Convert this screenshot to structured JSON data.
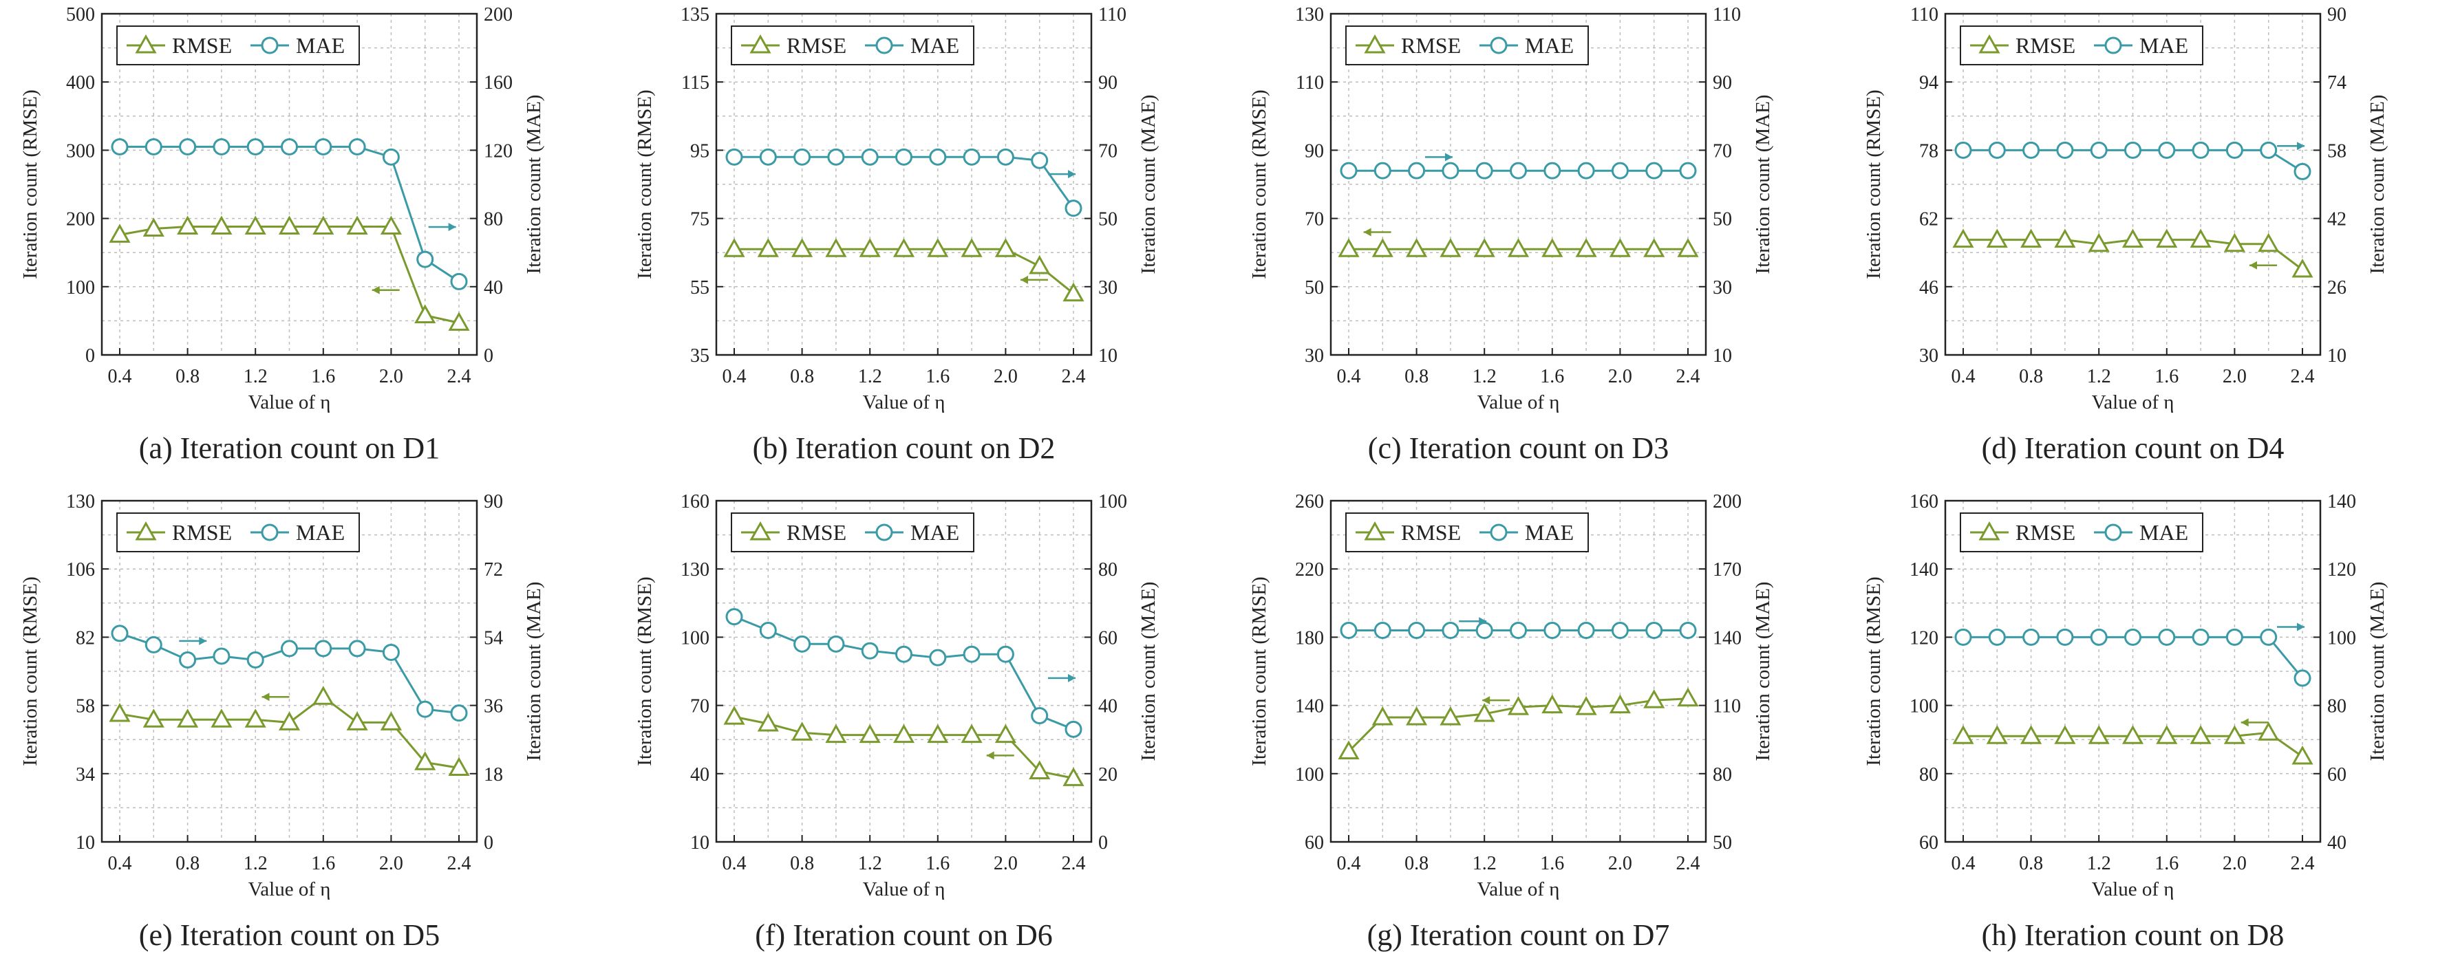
{
  "colors": {
    "rmse": "#7a9a2e",
    "mae": "#3a9aa6",
    "grid": "#bdbdbd",
    "frame": "#222222"
  },
  "chart_data": [
    {
      "type": "line",
      "caption": "(a) Iteration count on D1",
      "xlabel": "Value of η",
      "ylabel_left": "Iteration count (RMSE)",
      "ylabel_right": "Iteration count (MAE)",
      "x": [
        0.4,
        0.6,
        0.8,
        1.0,
        1.2,
        1.4,
        1.6,
        1.8,
        2.0,
        2.2,
        2.4
      ],
      "x_ticks": [
        "0.4",
        "0.8",
        "1.2",
        "1.6",
        "2.0",
        "2.4"
      ],
      "y_left_ticks": [
        0,
        100,
        200,
        300,
        400,
        500
      ],
      "y_right_ticks": [
        0,
        40,
        80,
        120,
        160,
        200
      ],
      "ylim_left": [
        0,
        500
      ],
      "ylim_right": [
        0,
        200
      ],
      "series": [
        {
          "name": "RMSE",
          "axis": "left",
          "marker": "triangle",
          "values": [
            176,
            185,
            188,
            188,
            188,
            188,
            188,
            188,
            188,
            58,
            47
          ]
        },
        {
          "name": "MAE",
          "axis": "right",
          "marker": "circle",
          "values": [
            122,
            122,
            122,
            122,
            122,
            122,
            122,
            122,
            116,
            56,
            43
          ]
        }
      ],
      "arrows": [
        {
          "series": "RMSE",
          "direction": "left",
          "x": 2.05,
          "y": 95
        },
        {
          "series": "MAE",
          "direction": "right",
          "x": 2.22,
          "y": 75
        }
      ],
      "legend": "top-left",
      "grid": true
    },
    {
      "type": "line",
      "caption": "(b) Iteration count on D2",
      "xlabel": "Value of η",
      "ylabel_left": "Iteration count (RMSE)",
      "ylabel_right": "Iteration count (MAE)",
      "x": [
        0.4,
        0.6,
        0.8,
        1.0,
        1.2,
        1.4,
        1.6,
        1.8,
        2.0,
        2.2,
        2.4
      ],
      "x_ticks": [
        "0.4",
        "0.8",
        "1.2",
        "1.6",
        "2.0",
        "2.4"
      ],
      "y_left_ticks": [
        35,
        55,
        75,
        95,
        115,
        135
      ],
      "y_right_ticks": [
        10,
        30,
        50,
        70,
        90,
        110
      ],
      "ylim_left": [
        35,
        135
      ],
      "ylim_right": [
        10,
        110
      ],
      "series": [
        {
          "name": "RMSE",
          "axis": "left",
          "marker": "triangle",
          "values": [
            66,
            66,
            66,
            66,
            66,
            66,
            66,
            66,
            66,
            61,
            53
          ]
        },
        {
          "name": "MAE",
          "axis": "right",
          "marker": "circle",
          "values": [
            68,
            68,
            68,
            68,
            68,
            68,
            68,
            68,
            68,
            67,
            53
          ]
        }
      ],
      "arrows": [
        {
          "series": "RMSE",
          "direction": "left",
          "x": 2.25,
          "y": 57
        },
        {
          "series": "MAE",
          "direction": "right",
          "x": 2.25,
          "y": 63
        }
      ],
      "legend": "top-left",
      "grid": true
    },
    {
      "type": "line",
      "caption": "(c) Iteration count on D3",
      "xlabel": "Value of η",
      "ylabel_left": "Iteration count (RMSE)",
      "ylabel_right": "Iteration count (MAE)",
      "x": [
        0.4,
        0.6,
        0.8,
        1.0,
        1.2,
        1.4,
        1.6,
        1.8,
        2.0,
        2.2,
        2.4
      ],
      "x_ticks": [
        "0.4",
        "0.8",
        "1.2",
        "1.6",
        "2.0",
        "2.4"
      ],
      "y_left_ticks": [
        30,
        50,
        70,
        90,
        110,
        130
      ],
      "y_right_ticks": [
        10,
        30,
        50,
        70,
        90,
        110
      ],
      "ylim_left": [
        30,
        130
      ],
      "ylim_right": [
        10,
        110
      ],
      "series": [
        {
          "name": "RMSE",
          "axis": "left",
          "marker": "triangle",
          "values": [
            61,
            61,
            61,
            61,
            61,
            61,
            61,
            61,
            61,
            61,
            61
          ]
        },
        {
          "name": "MAE",
          "axis": "right",
          "marker": "circle",
          "values": [
            64,
            64,
            64,
            64,
            64,
            64,
            64,
            64,
            64,
            64,
            64
          ]
        }
      ],
      "arrows": [
        {
          "series": "RMSE",
          "direction": "left",
          "x": 0.65,
          "y": 66
        },
        {
          "series": "MAE",
          "direction": "right",
          "x": 0.85,
          "y": 68
        }
      ],
      "legend": "top-left",
      "grid": true
    },
    {
      "type": "line",
      "caption": "(d) Iteration count on D4",
      "xlabel": "Value of η",
      "ylabel_left": "Iteration count (RMSE)",
      "ylabel_right": "Iteration count (MAE)",
      "x": [
        0.4,
        0.6,
        0.8,
        1.0,
        1.2,
        1.4,
        1.6,
        1.8,
        2.0,
        2.2,
        2.4
      ],
      "x_ticks": [
        "0.4",
        "0.8",
        "1.2",
        "1.6",
        "2.0",
        "2.4"
      ],
      "y_left_ticks": [
        30,
        46,
        62,
        78,
        94,
        110
      ],
      "y_right_ticks": [
        10,
        26,
        42,
        58,
        74,
        90
      ],
      "ylim_left": [
        30,
        110
      ],
      "ylim_right": [
        10,
        90
      ],
      "series": [
        {
          "name": "RMSE",
          "axis": "left",
          "marker": "triangle",
          "values": [
            57,
            57,
            57,
            57,
            56,
            57,
            57,
            57,
            56,
            56,
            50
          ]
        },
        {
          "name": "MAE",
          "axis": "right",
          "marker": "circle",
          "values": [
            58,
            58,
            58,
            58,
            58,
            58,
            58,
            58,
            58,
            58,
            53
          ]
        }
      ],
      "arrows": [
        {
          "series": "RMSE",
          "direction": "left",
          "x": 2.25,
          "y": 51
        },
        {
          "series": "MAE",
          "direction": "right",
          "x": 2.25,
          "y": 59
        }
      ],
      "legend": "top-left",
      "grid": true
    },
    {
      "type": "line",
      "caption": "(e) Iteration count on D5",
      "xlabel": "Value of η",
      "ylabel_left": "Iteration count (RMSE)",
      "ylabel_right": "Iteration count (MAE)",
      "x": [
        0.4,
        0.6,
        0.8,
        1.0,
        1.2,
        1.4,
        1.6,
        1.8,
        2.0,
        2.2,
        2.4
      ],
      "x_ticks": [
        "0.4",
        "0.8",
        "1.2",
        "1.6",
        "2.0",
        "2.4"
      ],
      "y_left_ticks": [
        10,
        34,
        58,
        82,
        106,
        130
      ],
      "y_right_ticks": [
        0,
        18,
        36,
        54,
        72,
        90
      ],
      "ylim_left": [
        10,
        130
      ],
      "ylim_right": [
        0,
        90
      ],
      "series": [
        {
          "name": "RMSE",
          "axis": "left",
          "marker": "triangle",
          "values": [
            55,
            53,
            53,
            53,
            53,
            52,
            61,
            52,
            52,
            38,
            36
          ]
        },
        {
          "name": "MAE",
          "axis": "right",
          "marker": "circle",
          "values": [
            55,
            52,
            48,
            49,
            48,
            51,
            51,
            51,
            50,
            35,
            34
          ]
        }
      ],
      "arrows": [
        {
          "series": "RMSE",
          "direction": "left",
          "x": 1.4,
          "y": 61
        },
        {
          "series": "MAE",
          "direction": "right",
          "x": 0.75,
          "y": 53
        }
      ],
      "legend": "top-left",
      "grid": true
    },
    {
      "type": "line",
      "caption": "(f) Iteration count on D6",
      "xlabel": "Value of η",
      "ylabel_left": "Iteration count (RMSE)",
      "ylabel_right": "Iteration count (MAE)",
      "x": [
        0.4,
        0.6,
        0.8,
        1.0,
        1.2,
        1.4,
        1.6,
        1.8,
        2.0,
        2.2,
        2.4
      ],
      "x_ticks": [
        "0.4",
        "0.8",
        "1.2",
        "1.6",
        "2.0",
        "2.4"
      ],
      "y_left_ticks": [
        10,
        40,
        70,
        100,
        130,
        160
      ],
      "y_right_ticks": [
        0,
        20,
        40,
        60,
        80,
        100
      ],
      "ylim_left": [
        10,
        160
      ],
      "ylim_right": [
        0,
        100
      ],
      "series": [
        {
          "name": "RMSE",
          "axis": "left",
          "marker": "triangle",
          "values": [
            65,
            62,
            58,
            57,
            57,
            57,
            57,
            57,
            57,
            41,
            38
          ]
        },
        {
          "name": "MAE",
          "axis": "right",
          "marker": "circle",
          "values": [
            66,
            62,
            58,
            58,
            56,
            55,
            54,
            55,
            55,
            37,
            33
          ]
        }
      ],
      "arrows": [
        {
          "series": "RMSE",
          "direction": "left",
          "x": 2.05,
          "y": 48
        },
        {
          "series": "MAE",
          "direction": "right",
          "x": 2.25,
          "y": 48
        }
      ],
      "legend": "top-left",
      "grid": true
    },
    {
      "type": "line",
      "caption": "(g) Iteration count on D7",
      "xlabel": "Value of η",
      "ylabel_left": "Iteration count (RMSE)",
      "ylabel_right": "Iteration count (MAE)",
      "x": [
        0.4,
        0.6,
        0.8,
        1.0,
        1.2,
        1.4,
        1.6,
        1.8,
        2.0,
        2.2,
        2.4
      ],
      "x_ticks": [
        "0.4",
        "0.8",
        "1.2",
        "1.6",
        "2.0",
        "2.4"
      ],
      "y_left_ticks": [
        60,
        100,
        140,
        180,
        220,
        260
      ],
      "y_right_ticks": [
        50,
        80,
        110,
        140,
        170,
        200
      ],
      "ylim_left": [
        60,
        260
      ],
      "ylim_right": [
        50,
        200
      ],
      "series": [
        {
          "name": "RMSE",
          "axis": "left",
          "marker": "triangle",
          "values": [
            113,
            133,
            133,
            133,
            135,
            139,
            140,
            139,
            140,
            143,
            144
          ]
        },
        {
          "name": "MAE",
          "axis": "right",
          "marker": "circle",
          "values": [
            143,
            143,
            143,
            143,
            143,
            143,
            143,
            143,
            143,
            143,
            143
          ]
        }
      ],
      "arrows": [
        {
          "series": "RMSE",
          "direction": "left",
          "x": 1.35,
          "y": 143
        },
        {
          "series": "MAE",
          "direction": "right",
          "x": 1.05,
          "y": 147
        }
      ],
      "legend": "top-left",
      "grid": true
    },
    {
      "type": "line",
      "caption": "(h) Iteration count on D8",
      "xlabel": "Value of η",
      "ylabel_left": "Iteration count (RMSE)",
      "ylabel_right": "Iteration count (MAE)",
      "x": [
        0.4,
        0.6,
        0.8,
        1.0,
        1.2,
        1.4,
        1.6,
        1.8,
        2.0,
        2.2,
        2.4
      ],
      "x_ticks": [
        "0.4",
        "0.8",
        "1.2",
        "1.6",
        "2.0",
        "2.4"
      ],
      "y_left_ticks": [
        60,
        80,
        100,
        120,
        140,
        160
      ],
      "y_right_ticks": [
        40,
        60,
        80,
        100,
        120,
        140
      ],
      "ylim_left": [
        60,
        160
      ],
      "ylim_right": [
        40,
        140
      ],
      "series": [
        {
          "name": "RMSE",
          "axis": "left",
          "marker": "triangle",
          "values": [
            91,
            91,
            91,
            91,
            91,
            91,
            91,
            91,
            91,
            92,
            85
          ]
        },
        {
          "name": "MAE",
          "axis": "right",
          "marker": "circle",
          "values": [
            100,
            100,
            100,
            100,
            100,
            100,
            100,
            100,
            100,
            100,
            88
          ]
        }
      ],
      "arrows": [
        {
          "series": "RMSE",
          "direction": "left",
          "x": 2.2,
          "y": 95
        },
        {
          "series": "MAE",
          "direction": "right",
          "x": 2.25,
          "y": 103
        }
      ],
      "legend": "top-left",
      "grid": true
    }
  ]
}
